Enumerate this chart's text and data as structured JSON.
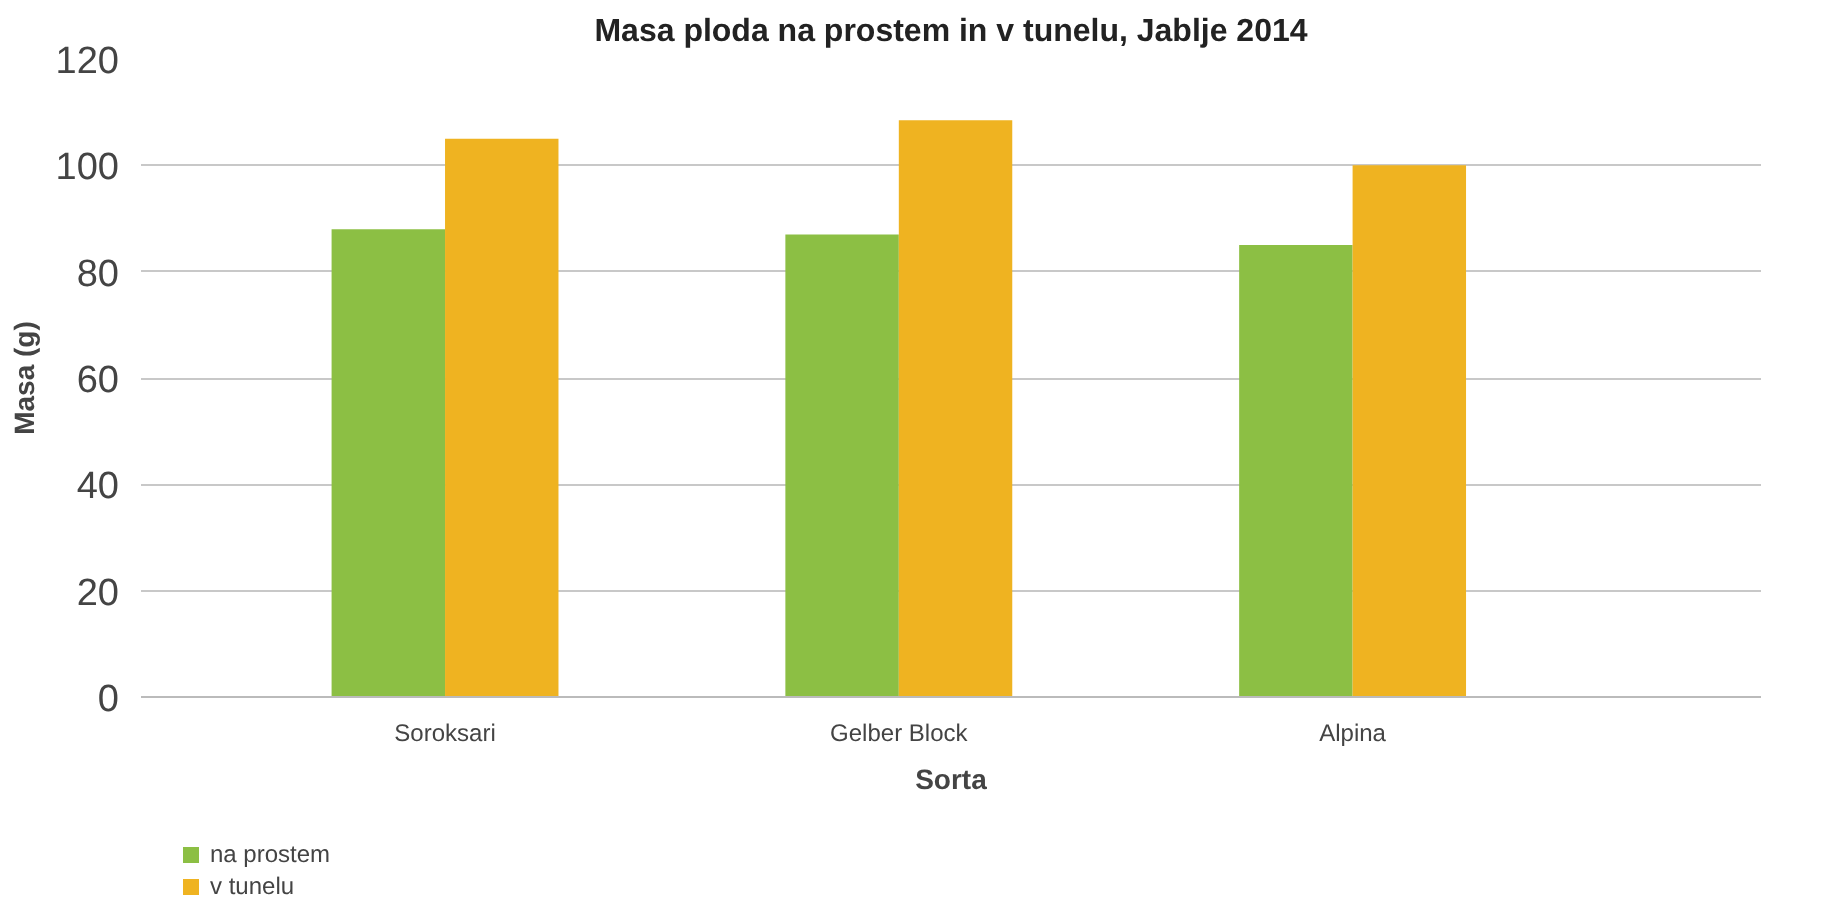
{
  "chart_data": {
    "type": "bar",
    "title": "Masa ploda na prostem in v tunelu, Jablje 2014",
    "xlabel": "Sorta",
    "ylabel": "Masa (g)",
    "categories": [
      "Soroksari",
      "Gelber Block",
      "Alpina"
    ],
    "series": [
      {
        "name": "na prostem",
        "color": "#8cbf44",
        "values": [
          88,
          87,
          85
        ]
      },
      {
        "name": "v tunelu",
        "color": "#efb321",
        "values": [
          105,
          108.5,
          100
        ]
      }
    ],
    "ylim": [
      0,
      120
    ],
    "yticks": [
      0,
      20,
      40,
      60,
      80,
      100,
      120
    ],
    "grid": "y",
    "legend": "bottom left"
  }
}
